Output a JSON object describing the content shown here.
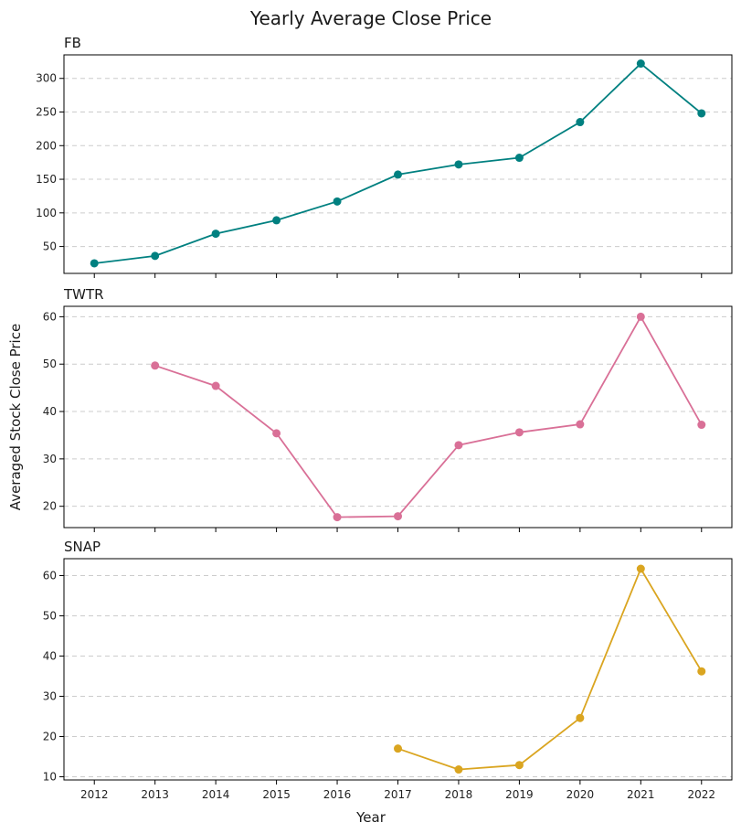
{
  "chart_data": {
    "type": "line",
    "title": "Yearly Average Close Price",
    "xlabel": "Year",
    "ylabel": "Averaged Stock Close Price",
    "x": [
      2012,
      2013,
      2014,
      2015,
      2016,
      2017,
      2018,
      2019,
      2020,
      2021,
      2022
    ],
    "xlim": [
      2011.5,
      2022.5
    ],
    "grid": "y-dashed",
    "panels": [
      {
        "name": "FB",
        "color": "#008080",
        "yticks": [
          50,
          100,
          150,
          200,
          250,
          300
        ],
        "ylim": [
          10,
          335
        ],
        "values": [
          25,
          36,
          69,
          89,
          117,
          157,
          172,
          182,
          235,
          322,
          248
        ]
      },
      {
        "name": "TWTR",
        "color": "#d97097",
        "yticks": [
          20,
          30,
          40,
          50,
          60
        ],
        "ylim": [
          15.5,
          62.2
        ],
        "values": [
          null,
          49.7,
          45.4,
          35.4,
          17.7,
          17.9,
          32.9,
          35.6,
          37.3,
          60.0,
          37.2
        ]
      },
      {
        "name": "SNAP",
        "color": "#daa520",
        "yticks": [
          10,
          20,
          30,
          40,
          50,
          60
        ],
        "ylim": [
          9.2,
          64.2
        ],
        "values": [
          null,
          null,
          null,
          null,
          null,
          17.0,
          11.8,
          12.9,
          24.6,
          61.7,
          36.2
        ]
      }
    ]
  }
}
